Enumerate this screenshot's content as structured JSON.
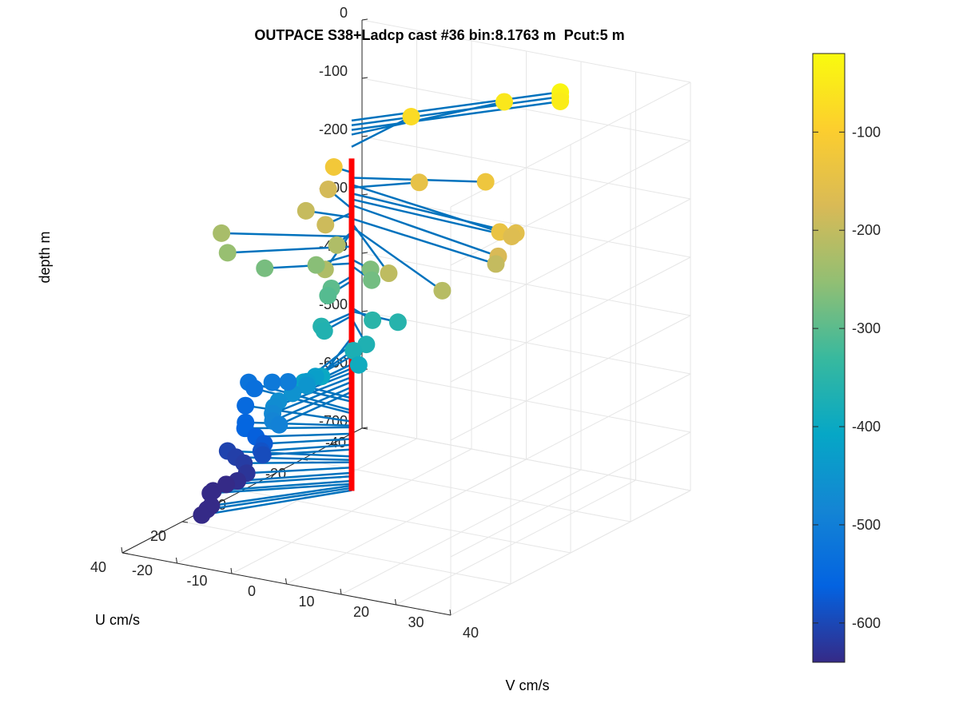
{
  "chart_data": {
    "type": "scatter",
    "projection": "3d",
    "title": "OUTPACE S38+Ladcp cast #36 bin:8.1763 m  Pcut:5 m",
    "xlabel": "U cm/s",
    "ylabel": "V cm/s",
    "zlabel": "depth m",
    "u_ticks": [
      "-40",
      "-20",
      "0",
      "20",
      "40"
    ],
    "v_ticks": [
      "-20",
      "-10",
      "0",
      "10",
      "20",
      "30",
      "40"
    ],
    "depth_ticks": [
      "0",
      "-100",
      "-200",
      "-300",
      "-400",
      "-500",
      "-600",
      "-700"
    ],
    "ulim": [
      -40,
      40
    ],
    "vlim": [
      -20,
      40
    ],
    "zlim": [
      -700,
      0
    ],
    "grid": true,
    "colorbar": {
      "ticks": [
        "-100",
        "-200",
        "-300",
        "-400",
        "-500",
        "-600"
      ],
      "range": [
        -640,
        -20
      ],
      "colormap": "parula",
      "colors": [
        "#352a87",
        "#0363e1",
        "#1485d4",
        "#06a7c6",
        "#38b99e",
        "#92bf73",
        "#d9ba56",
        "#fcce2e",
        "#f9fb0e"
      ]
    },
    "stick_color": "#0072bd",
    "profile_color": "#ff0000",
    "profile_depth_range": [
      -95,
      -665
    ],
    "points": [
      {
        "depth": -30,
        "u": -32.0,
        "v": 20.6
      },
      {
        "depth": -38,
        "u": -32.0,
        "v": 20.6
      },
      {
        "depth": -46,
        "u": -32.0,
        "v": 20.6
      },
      {
        "depth": -54,
        "u": -29.0,
        "v": 12.0
      },
      {
        "depth": -75,
        "u": -19.5,
        "v": 0.2
      },
      {
        "depth": -119,
        "u": -1.0,
        "v": -3.8
      },
      {
        "depth": -128,
        "u": -10.0,
        "v": 19.0
      },
      {
        "depth": -140,
        "u": 9.0,
        "v": 32.0
      },
      {
        "depth": -145,
        "u": -8.5,
        "v": 7.7
      },
      {
        "depth": -155,
        "u": 4.0,
        "v": 32.2
      },
      {
        "depth": -165,
        "u": 3.2,
        "v": 31.0
      },
      {
        "depth": -175,
        "u": 11.0,
        "v": 32.8
      },
      {
        "depth": -181,
        "u": -7.0,
        "v": -8.1
      },
      {
        "depth": -188,
        "u": 8.0,
        "v": -0.4
      },
      {
        "depth": -196,
        "u": 1.0,
        "v": -7.8
      },
      {
        "depth": -198,
        "u": 8.5,
        "v": 31.0
      },
      {
        "depth": -205,
        "u": 20.5,
        "v": 18.0
      },
      {
        "depth": -212,
        "u": 22.0,
        "v": 28.6
      },
      {
        "depth": -221,
        "u": 7.5,
        "v": 1.4
      },
      {
        "depth": -221,
        "u": 20.0,
        "v": 6.1
      },
      {
        "depth": -229,
        "u": 10.0,
        "v": -18.3
      },
      {
        "depth": -246,
        "u": 14.0,
        "v": -15.0
      },
      {
        "depth": -260,
        "u": 8.0,
        "v": -2.1
      },
      {
        "depth": -268,
        "u": 3.0,
        "v": 5.1
      },
      {
        "depth": -275,
        "u": 10.0,
        "v": -10.4
      },
      {
        "depth": -279,
        "u": 5.0,
        "v": 6.4
      },
      {
        "depth": -297,
        "u": 7.5,
        "v": 0.4
      },
      {
        "depth": -305,
        "u": 9.0,
        "v": 0.6
      },
      {
        "depth": -351,
        "u": 4.0,
        "v": 6.0
      },
      {
        "depth": -357,
        "u": 1.0,
        "v": 9.0
      },
      {
        "depth": -360,
        "u": 9.0,
        "v": -0.6
      },
      {
        "depth": -365,
        "u": 9.5,
        "v": 0.2
      },
      {
        "depth": -369,
        "u": 11.0,
        "v": 8.7
      },
      {
        "depth": -373,
        "u": 14.0,
        "v": 8.0
      },
      {
        "depth": -392,
        "u": 15.0,
        "v": 9.5
      },
      {
        "depth": -402,
        "u": 21.0,
        "v": 6.0
      },
      {
        "depth": -414,
        "u": 22.0,
        "v": 3.3
      },
      {
        "depth": -426,
        "u": 15.0,
        "v": 1.6
      },
      {
        "depth": -434,
        "u": 16.0,
        "v": 0.6
      },
      {
        "depth": -448,
        "u": 14.0,
        "v": -0.5
      },
      {
        "depth": -455,
        "u": 17.0,
        "v": -1.5
      },
      {
        "depth": -462,
        "u": 20.0,
        "v": -2.4
      },
      {
        "depth": -470,
        "u": 21.0,
        "v": -2.7
      },
      {
        "depth": -478,
        "u": 22.0,
        "v": -2.4
      },
      {
        "depth": -487,
        "u": 23.0,
        "v": -1.8
      },
      {
        "depth": -495,
        "u": 22.0,
        "v": -1.2
      },
      {
        "depth": -506,
        "u": -2.0,
        "v": -12.7
      },
      {
        "depth": -512,
        "u": -2.0,
        "v": -15.6
      },
      {
        "depth": -527,
        "u": -4.0,
        "v": -21.0
      },
      {
        "depth": -532,
        "u": -3.0,
        "v": -19.4
      },
      {
        "depth": -546,
        "u": 2.0,
        "v": -18.3
      },
      {
        "depth": -553,
        "u": 8.0,
        "v": -15.0
      },
      {
        "depth": -556,
        "u": 10.0,
        "v": -14.0
      },
      {
        "depth": -567,
        "u": 10.0,
        "v": -12.0
      },
      {
        "depth": -576,
        "u": 10.0,
        "v": -10.5
      },
      {
        "depth": -586,
        "u": 11.0,
        "v": -10.5
      },
      {
        "depth": -594,
        "u": 10.5,
        "v": -10.5
      },
      {
        "depth": -606,
        "u": 8.5,
        "v": -18.0
      },
      {
        "depth": -612,
        "u": 9.0,
        "v": -16.2
      },
      {
        "depth": -616,
        "u": 10.0,
        "v": -14.2
      },
      {
        "depth": -625,
        "u": 12.0,
        "v": -12.6
      },
      {
        "depth": -634,
        "u": 14.0,
        "v": -13.2
      },
      {
        "depth": -640,
        "u": 15.0,
        "v": -14.7
      },
      {
        "depth": -648,
        "u": 17.0,
        "v": -16.0
      },
      {
        "depth": -653,
        "u": 17.0,
        "v": -16.5
      },
      {
        "depth": -656,
        "u": 22.0,
        "v": -13.6
      },
      {
        "depth": -660,
        "u": 23.0,
        "v": -13.8
      },
      {
        "depth": -664,
        "u": 25.0,
        "v": -13.7
      }
    ]
  }
}
